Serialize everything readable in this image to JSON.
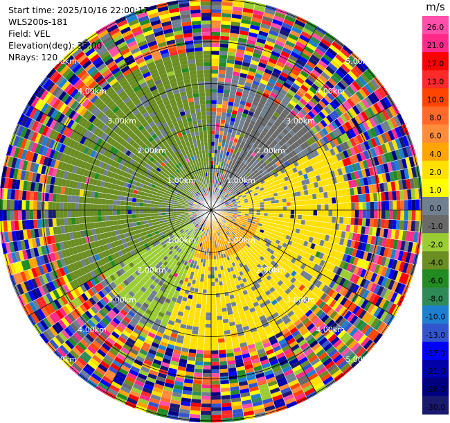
{
  "header": {
    "start_time": "Start time: 2025/10/16 22:00:17",
    "instrument": "WLS200s-181",
    "field": "Field: VEL",
    "elevation": "Elevation(deg): 35.00",
    "nrays": "NRays: 120"
  },
  "chart_data": {
    "type": "heatmap",
    "projection": "polar-ppi",
    "field": "VEL",
    "units": "m/s",
    "nrays": 120,
    "elevation_deg": 35.0,
    "max_range_km": 5.0,
    "range_rings_km": [
      1,
      2,
      3,
      4,
      5
    ],
    "ring_labels": [
      "1.00km",
      "2.00km",
      "3.00km",
      "4.00km",
      "5.00km"
    ],
    "spoke_angles_deg": [
      0,
      30,
      60,
      90,
      120,
      150,
      180,
      210,
      240,
      270,
      300,
      330
    ],
    "colorbar": {
      "unit_label": "m/s",
      "ticks": [
        "26.0",
        "21.0",
        "17.0",
        "13.0",
        "10.0",
        "8.0",
        "6.0",
        "4.0",
        "2.0",
        "1.0",
        "0.0",
        "-1.0",
        "-2.0",
        "-4.0",
        "-6.0",
        "-8.0",
        "-10.0",
        "-13.0",
        "-17.0",
        "-21.0",
        "-26.0",
        "-30.0"
      ],
      "colors": [
        "#ff4fa8",
        "#ff2a8a",
        "#ff0000",
        "#ff2a2a",
        "#ff4500",
        "#ff6a2a",
        "#ff8c3a",
        "#ffa500",
        "#ffe000",
        "#ffff00",
        "#708090",
        "#696969",
        "#9acd32",
        "#6b8e23",
        "#228b22",
        "#2e8b57",
        "#1e7fd0",
        "#3355cc",
        "#0000ff",
        "#0000aa",
        "#000080",
        "#191970"
      ]
    },
    "regions": [
      {
        "azimuth_deg": [
          240,
          360
        ],
        "range_km": [
          0.5,
          3.8
        ],
        "value_ms": -4.0
      },
      {
        "azimuth_deg": [
          200,
          240
        ],
        "range_km": [
          0.5,
          3.0
        ],
        "value_ms": -2.0
      },
      {
        "azimuth_deg": [
          20,
          60
        ],
        "range_km": [
          0.6,
          3.0
        ],
        "value_ms": -1.0
      },
      {
        "azimuth_deg": [
          60,
          200
        ],
        "range_km": [
          0.6,
          3.3
        ],
        "value_ms": 2.0
      },
      {
        "azimuth_deg": [
          100,
          200
        ],
        "range_km": [
          0.0,
          1.2
        ],
        "value_ms": 4.0
      }
    ]
  }
}
